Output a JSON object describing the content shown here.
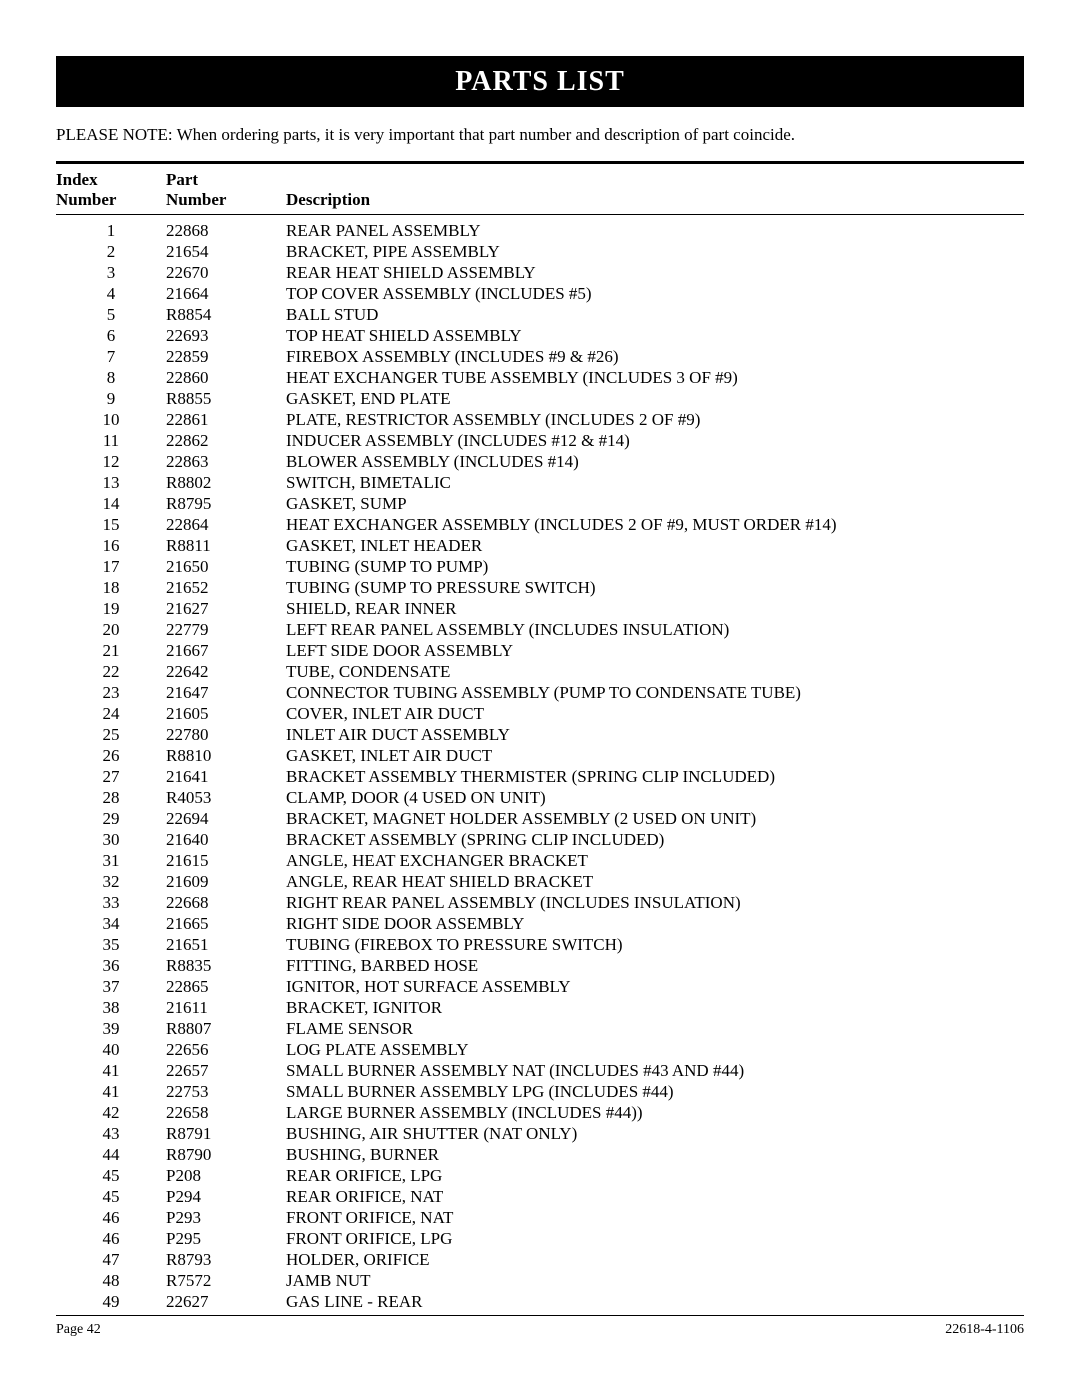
{
  "title": "PARTS LIST",
  "note": "PLEASE NOTE:  When ordering parts, it is very important that part number and description of part coincide.",
  "columns": {
    "index_line1": "Index",
    "index_line2": "Number",
    "part_line1": "Part",
    "part_line2": "Number",
    "desc": "Description"
  },
  "rows": [
    {
      "index": "1",
      "part": "22868",
      "desc": "REAR PANEL ASSEMBLY"
    },
    {
      "index": "2",
      "part": "21654",
      "desc": "BRACKET, PIPE ASSEMBLY"
    },
    {
      "index": "3",
      "part": "22670",
      "desc": "REAR HEAT SHIELD ASSEMBLY"
    },
    {
      "index": "4",
      "part": "21664",
      "desc": "TOP COVER ASSEMBLY (INCLUDES #5)"
    },
    {
      "index": "5",
      "part": "R8854",
      "desc": "BALL STUD"
    },
    {
      "index": "6",
      "part": "22693",
      "desc": "TOP HEAT SHIELD ASSEMBLY"
    },
    {
      "index": "7",
      "part": "22859",
      "desc": "FIREBOX ASSEMBLY (INCLUDES #9 & #26)"
    },
    {
      "index": "8",
      "part": "22860",
      "desc": "HEAT EXCHANGER TUBE ASSEMBLY (INCLUDES 3 OF #9)"
    },
    {
      "index": "9",
      "part": "R8855",
      "desc": "GASKET, END PLATE"
    },
    {
      "index": "10",
      "part": "22861",
      "desc": "PLATE, RESTRICTOR ASSEMBLY (INCLUDES 2 OF #9)"
    },
    {
      "index": "11",
      "part": "22862",
      "desc": "INDUCER ASSEMBLY (INCLUDES #12 & #14)"
    },
    {
      "index": "12",
      "part": "22863",
      "desc": "BLOWER ASSEMBLY (INCLUDES #14)"
    },
    {
      "index": "13",
      "part": "R8802",
      "desc": "SWITCH, BIMETALIC"
    },
    {
      "index": "14",
      "part": "R8795",
      "desc": "GASKET, SUMP"
    },
    {
      "index": "15",
      "part": "22864",
      "desc": "HEAT EXCHANGER ASSEMBLY (INCLUDES 2 OF #9, MUST ORDER #14)"
    },
    {
      "index": "16",
      "part": "R8811",
      "desc": "GASKET, INLET HEADER"
    },
    {
      "index": "17",
      "part": "21650",
      "desc": "TUBING (SUMP TO PUMP)"
    },
    {
      "index": "18",
      "part": "21652",
      "desc": "TUBING (SUMP TO PRESSURE SWITCH)"
    },
    {
      "index": "19",
      "part": "21627",
      "desc": "SHIELD, REAR INNER"
    },
    {
      "index": "20",
      "part": "22779",
      "desc": "LEFT REAR PANEL ASSEMBLY (INCLUDES INSULATION)"
    },
    {
      "index": "21",
      "part": "21667",
      "desc": "LEFT SIDE DOOR ASSEMBLY"
    },
    {
      "index": "22",
      "part": "22642",
      "desc": "TUBE, CONDENSATE"
    },
    {
      "index": "23",
      "part": "21647",
      "desc": "CONNECTOR TUBING ASSEMBLY (PUMP TO CONDENSATE TUBE)"
    },
    {
      "index": "24",
      "part": "21605",
      "desc": "COVER, INLET AIR DUCT"
    },
    {
      "index": "25",
      "part": "22780",
      "desc": "INLET AIR DUCT ASSEMBLY"
    },
    {
      "index": "26",
      "part": "R8810",
      "desc": "GASKET, INLET AIR DUCT"
    },
    {
      "index": "27",
      "part": "21641",
      "desc": "BRACKET ASSEMBLY THERMISTER (SPRING CLIP INCLUDED)"
    },
    {
      "index": "28",
      "part": "R4053",
      "desc": "CLAMP, DOOR (4 USED ON UNIT)"
    },
    {
      "index": "29",
      "part": "22694",
      "desc": "BRACKET, MAGNET HOLDER ASSEMBLY (2 USED ON UNIT)"
    },
    {
      "index": "30",
      "part": "21640",
      "desc": "BRACKET ASSEMBLY (SPRING CLIP INCLUDED)"
    },
    {
      "index": "31",
      "part": "21615",
      "desc": "ANGLE, HEAT EXCHANGER BRACKET"
    },
    {
      "index": "32",
      "part": "21609",
      "desc": "ANGLE, REAR HEAT SHIELD BRACKET"
    },
    {
      "index": "33",
      "part": "22668",
      "desc": "RIGHT REAR PANEL ASSEMBLY (INCLUDES INSULATION)"
    },
    {
      "index": "34",
      "part": "21665",
      "desc": "RIGHT SIDE DOOR ASSEMBLY"
    },
    {
      "index": "35",
      "part": "21651",
      "desc": "TUBING (FIREBOX TO PRESSURE SWITCH)"
    },
    {
      "index": "36",
      "part": "R8835",
      "desc": "FITTING, BARBED HOSE"
    },
    {
      "index": "37",
      "part": "22865",
      "desc": "IGNITOR, HOT SURFACE ASSEMBLY"
    },
    {
      "index": "38",
      "part": "21611",
      "desc": "BRACKET, IGNITOR"
    },
    {
      "index": "39",
      "part": "R8807",
      "desc": "FLAME SENSOR"
    },
    {
      "index": "40",
      "part": "22656",
      "desc": "LOG PLATE ASSEMBLY"
    },
    {
      "index": "41",
      "part": "22657",
      "desc": "SMALL BURNER ASSEMBLY NAT (INCLUDES #43 AND #44)"
    },
    {
      "index": "41",
      "part": "22753",
      "desc": "SMALL BURNER ASSEMBLY LPG (INCLUDES #44)"
    },
    {
      "index": "42",
      "part": "22658",
      "desc": "LARGE BURNER ASSEMBLY (INCLUDES #44))"
    },
    {
      "index": "43",
      "part": "R8791",
      "desc": "BUSHING, AIR SHUTTER (NAT ONLY)"
    },
    {
      "index": "44",
      "part": "R8790",
      "desc": "BUSHING, BURNER"
    },
    {
      "index": "45",
      "part": "P208",
      "desc": "REAR ORIFICE, LPG"
    },
    {
      "index": "45",
      "part": "P294",
      "desc": "REAR ORIFICE, NAT"
    },
    {
      "index": "46",
      "part": "P293",
      "desc": "FRONT ORIFICE, NAT"
    },
    {
      "index": "46",
      "part": "P295",
      "desc": "FRONT ORIFICE, LPG"
    },
    {
      "index": "47",
      "part": "R8793",
      "desc": "HOLDER, ORIFICE"
    },
    {
      "index": "48",
      "part": "R7572",
      "desc": "JAMB NUT"
    },
    {
      "index": "49",
      "part": "22627",
      "desc": "GAS LINE - REAR"
    }
  ],
  "footer": {
    "left": "Page 42",
    "right": "22618-4-1106"
  }
}
